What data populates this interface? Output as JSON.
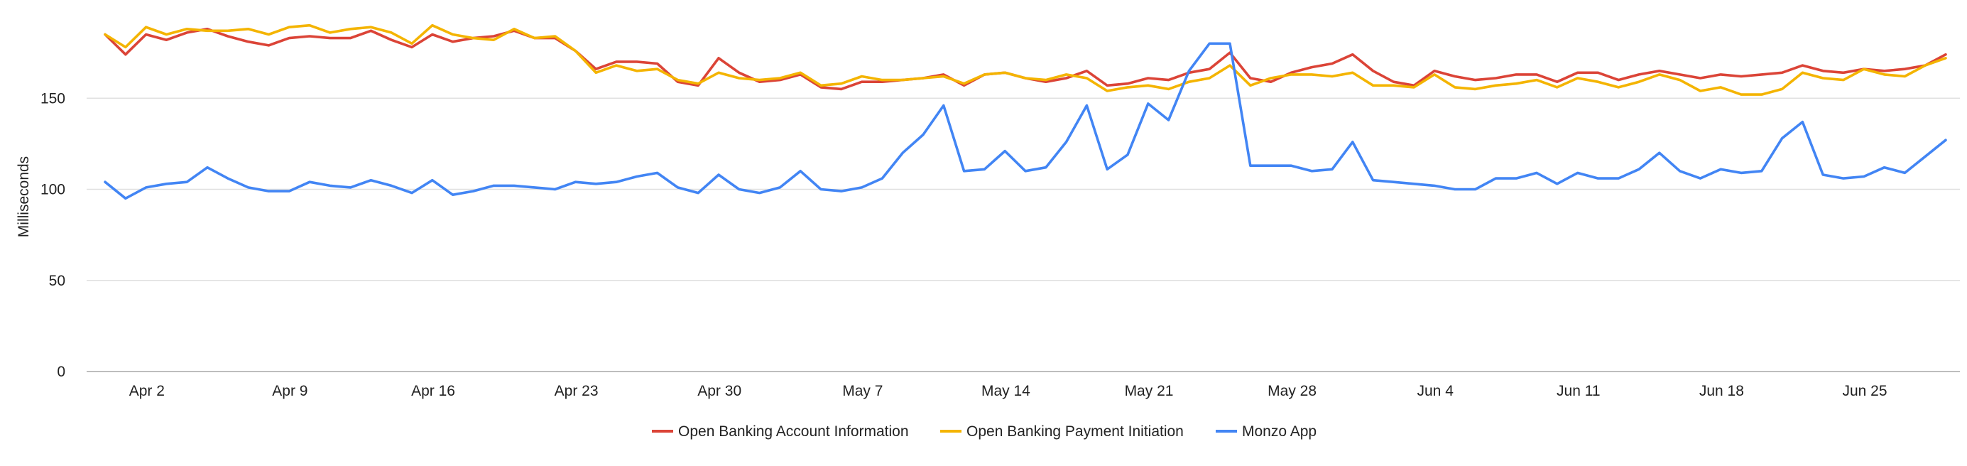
{
  "chart_data": {
    "type": "line",
    "title": "",
    "xlabel": "",
    "ylabel": "Milliseconds",
    "ylim": [
      0,
      200
    ],
    "yticks": [
      0,
      50,
      100,
      150
    ],
    "grid": true,
    "legend_position": "bottom",
    "x_start_label": "Apr 1",
    "x_tick_labels": [
      "Apr 2",
      "Apr 9",
      "Apr 16",
      "Apr 23",
      "Apr 30",
      "May 7",
      "May 14",
      "May 21",
      "May 28",
      "Jun 4",
      "Jun 11",
      "Jun 18",
      "Jun 25"
    ],
    "x_dates": [
      "Apr 1",
      "Apr 2",
      "Apr 3",
      "Apr 4",
      "Apr 5",
      "Apr 6",
      "Apr 7",
      "Apr 8",
      "Apr 9",
      "Apr 10",
      "Apr 11",
      "Apr 12",
      "Apr 13",
      "Apr 14",
      "Apr 15",
      "Apr 16",
      "Apr 17",
      "Apr 18",
      "Apr 19",
      "Apr 20",
      "Apr 21",
      "Apr 22",
      "Apr 23",
      "Apr 24",
      "Apr 25",
      "Apr 26",
      "Apr 27",
      "Apr 28",
      "Apr 29",
      "Apr 30",
      "May 1",
      "May 2",
      "May 3",
      "May 4",
      "May 5",
      "May 6",
      "May 7",
      "May 8",
      "May 9",
      "May 10",
      "May 11",
      "May 12",
      "May 13",
      "May 14",
      "May 15",
      "May 16",
      "May 17",
      "May 18",
      "May 19",
      "May 20",
      "May 21",
      "May 22",
      "May 23",
      "May 24",
      "May 25",
      "May 26",
      "May 27",
      "May 28",
      "May 29",
      "May 30",
      "May 31",
      "Jun 1",
      "Jun 2",
      "Jun 3",
      "Jun 4",
      "Jun 5",
      "Jun 6",
      "Jun 7",
      "Jun 8",
      "Jun 9",
      "Jun 10",
      "Jun 11",
      "Jun 12",
      "Jun 13",
      "Jun 14",
      "Jun 15",
      "Jun 16",
      "Jun 17",
      "Jun 18",
      "Jun 19",
      "Jun 20",
      "Jun 21",
      "Jun 22",
      "Jun 23",
      "Jun 24",
      "Jun 25",
      "Jun 26",
      "Jun 27",
      "Jun 28",
      "Jun 29",
      "Jun 30"
    ],
    "series": [
      {
        "name": "Open Banking Account Information",
        "color": "#db4437",
        "values": [
          185,
          174,
          185,
          182,
          186,
          188,
          184,
          181,
          179,
          183,
          184,
          183,
          183,
          187,
          182,
          178,
          185,
          181,
          183,
          184,
          187,
          183,
          183,
          176,
          166,
          170,
          170,
          169,
          159,
          157,
          172,
          164,
          159,
          160,
          163,
          156,
          155,
          159,
          159,
          160,
          161,
          163,
          157,
          163,
          164,
          161,
          159,
          161,
          165,
          157,
          158,
          161,
          160,
          164,
          166,
          175,
          161,
          159,
          164,
          167,
          169,
          174,
          165,
          159,
          157,
          165,
          162,
          160,
          161,
          163,
          163,
          159,
          164,
          164,
          160,
          163,
          165,
          163,
          161,
          163,
          162,
          163,
          164,
          168,
          165,
          164,
          166,
          165,
          166,
          168,
          174
        ]
      },
      {
        "name": "Open Banking Payment Initiation",
        "color": "#f4b400",
        "values": [
          185,
          178,
          189,
          185,
          188,
          187,
          187,
          188,
          185,
          189,
          190,
          186,
          188,
          189,
          186,
          180,
          190,
          185,
          183,
          182,
          188,
          183,
          184,
          176,
          164,
          168,
          165,
          166,
          160,
          158,
          164,
          161,
          160,
          161,
          164,
          157,
          158,
          162,
          160,
          160,
          161,
          162,
          158,
          163,
          164,
          161,
          160,
          163,
          161,
          154,
          156,
          157,
          155,
          159,
          161,
          168,
          157,
          161,
          163,
          163,
          162,
          164,
          157,
          157,
          156,
          163,
          156,
          155,
          157,
          158,
          160,
          156,
          161,
          159,
          156,
          159,
          163,
          160,
          154,
          156,
          152,
          152,
          155,
          164,
          161,
          160,
          166,
          163,
          162,
          168,
          172
        ]
      },
      {
        "name": "Monzo App",
        "color": "#4285f4",
        "values": [
          104,
          95,
          101,
          103,
          104,
          112,
          106,
          101,
          99,
          99,
          104,
          102,
          101,
          105,
          102,
          98,
          105,
          97,
          99,
          102,
          102,
          101,
          100,
          104,
          103,
          104,
          107,
          109,
          101,
          98,
          108,
          100,
          98,
          101,
          110,
          100,
          99,
          101,
          106,
          120,
          130,
          146,
          110,
          111,
          121,
          110,
          112,
          126,
          146,
          111,
          119,
          147,
          138,
          165,
          180,
          180,
          113,
          113,
          113,
          110,
          111,
          126,
          105,
          104,
          103,
          102,
          100,
          100,
          106,
          106,
          109,
          103,
          109,
          106,
          106,
          111,
          120,
          110,
          106,
          111,
          109,
          110,
          128,
          137,
          108,
          106,
          107,
          112,
          109,
          118,
          127
        ]
      }
    ]
  }
}
